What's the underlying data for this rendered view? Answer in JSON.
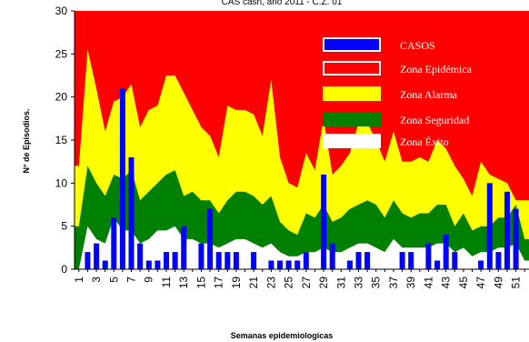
{
  "chart_data": {
    "type": "bar",
    "title": "CAS сasn, año 2011 - C.Z. 01",
    "xlabel": "Semanas epidemiologicas",
    "ylabel": "N° de Episodios.",
    "ylim": [
      0,
      30
    ],
    "yticks": [
      "0",
      "5",
      "10",
      "15",
      "20",
      "25",
      "30"
    ],
    "x_tick_labels": [
      "1",
      "3",
      "5",
      "7",
      "9",
      "11",
      "13",
      "15",
      "17",
      "19",
      "21",
      "23",
      "25",
      "27",
      "29",
      "31",
      "33",
      "35",
      "37",
      "39",
      "41",
      "43",
      "45",
      "47",
      "49",
      "51"
    ],
    "weeks": [
      1,
      2,
      3,
      4,
      5,
      6,
      7,
      8,
      9,
      10,
      11,
      12,
      13,
      14,
      15,
      16,
      17,
      18,
      19,
      20,
      21,
      22,
      23,
      24,
      25,
      26,
      27,
      28,
      29,
      30,
      31,
      32,
      33,
      34,
      35,
      36,
      37,
      38,
      39,
      40,
      41,
      42,
      43,
      44,
      45,
      46,
      47,
      48,
      49,
      50,
      51,
      52
    ],
    "legend_position": "top-right",
    "series": [
      {
        "name": "CASOS",
        "kind": "bar",
        "color": "#0000ff",
        "values": [
          0,
          2,
          3,
          1,
          6,
          21,
          13,
          3,
          1,
          1,
          2,
          2,
          5,
          0,
          3,
          7,
          2,
          2,
          2,
          0,
          2,
          0,
          1,
          1,
          1,
          1,
          2,
          0,
          11,
          3,
          0,
          1,
          2,
          2,
          0,
          0,
          0,
          2,
          2,
          0,
          3,
          1,
          4,
          2,
          0,
          0,
          1,
          10,
          2,
          9,
          7,
          0
        ]
      },
      {
        "name": "Zona Epidémica",
        "kind": "area",
        "color": "#ff0000",
        "values": [
          30,
          30,
          30,
          30,
          30,
          30,
          30,
          30,
          30,
          30,
          30,
          30,
          30,
          30,
          30,
          30,
          30,
          30,
          30,
          30,
          30,
          30,
          30,
          30,
          30,
          30,
          30,
          30,
          30,
          30,
          30,
          30,
          30,
          30,
          30,
          30,
          30,
          30,
          30,
          30,
          30,
          30,
          30,
          30,
          30,
          30,
          30,
          30,
          30,
          30,
          30,
          30
        ]
      },
      {
        "name": "Zona Alarma",
        "kind": "area",
        "color": "#ffff00",
        "values": [
          12,
          25.5,
          21,
          16,
          19.5,
          20,
          21.5,
          16.5,
          18.5,
          19,
          22.5,
          22.5,
          20.5,
          18.5,
          16.5,
          15.5,
          13,
          19,
          18.5,
          18.5,
          18,
          15.5,
          22,
          13,
          10,
          9.5,
          13.5,
          11.5,
          17.5,
          11,
          12,
          13.5,
          17,
          17,
          15,
          12.5,
          16,
          12.5,
          12.5,
          13,
          12.5,
          15,
          14,
          12,
          10.5,
          8.5,
          12.5,
          11,
          10.5,
          10,
          8,
          8
        ]
      },
      {
        "name": "Zona Seguridad",
        "kind": "area",
        "color": "#008000",
        "values": [
          5,
          12,
          10,
          8.5,
          11,
          10.5,
          11.5,
          8,
          9,
          10,
          11,
          11.5,
          8.5,
          9,
          8,
          8,
          6.5,
          8,
          9,
          9,
          8.5,
          7.5,
          8.5,
          5.5,
          4.5,
          4,
          6.5,
          6,
          7.5,
          5.5,
          6,
          7,
          7.5,
          8,
          7.5,
          6,
          8,
          6.5,
          6,
          6.5,
          6.5,
          7.5,
          7.5,
          5,
          6.5,
          4.5,
          5,
          5,
          6,
          6,
          7.5,
          3.5
        ]
      },
      {
        "name": "Zona Éxito",
        "kind": "area",
        "color": "#ffffff",
        "values": [
          0,
          5,
          3.5,
          3,
          6,
          4.5,
          4.5,
          3,
          3.5,
          4.5,
          4.5,
          5,
          3.5,
          3.5,
          3,
          3,
          2.5,
          3,
          3.5,
          3.5,
          3,
          2.5,
          3,
          2,
          1.5,
          1.5,
          2,
          2,
          2.5,
          2,
          2,
          2.5,
          3,
          3,
          2.5,
          2,
          3.5,
          2.5,
          2.5,
          2.5,
          2.5,
          3,
          3,
          2,
          2.5,
          1.5,
          2,
          2,
          2.5,
          2.5,
          3,
          1
        ]
      }
    ]
  }
}
